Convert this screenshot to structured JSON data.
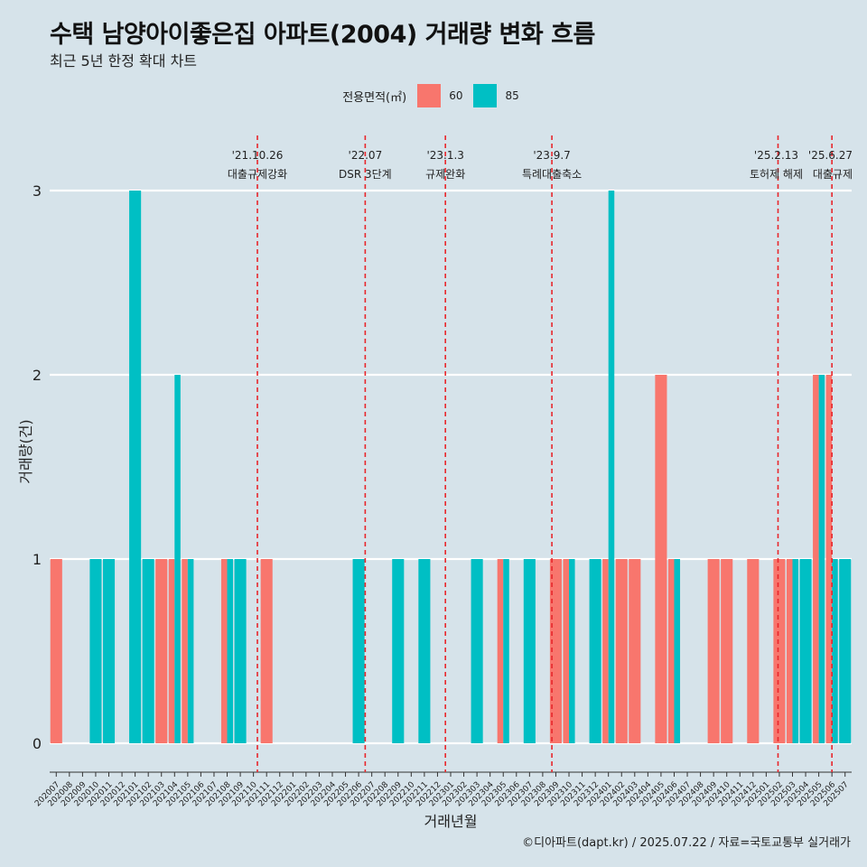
{
  "title": "수택 남양아이좋은집 아파트(2004) 거래량 변화 흐름",
  "subtitle": "최근 5년 한정 확대 차트",
  "caption": "©디아파트(dapt.kr) / 2025.07.22 / 자료=국토교통부 실거래가",
  "legend": {
    "title": "전용면적(㎡)",
    "items": [
      {
        "label": "60",
        "color": "#f8766d"
      },
      {
        "label": "85",
        "color": "#00bfc4"
      }
    ]
  },
  "chart_data": {
    "type": "bar",
    "xlabel": "거래년월",
    "ylabel": "거래량(건)",
    "ylim": [
      0,
      3
    ],
    "yticks": [
      0,
      1,
      2,
      3
    ],
    "grid": true,
    "legend_position": "top",
    "categories": [
      "202007",
      "202008",
      "202009",
      "202010",
      "202011",
      "202012",
      "202101",
      "202102",
      "202103",
      "202104",
      "202105",
      "202106",
      "202107",
      "202108",
      "202109",
      "202110",
      "202111",
      "202112",
      "202201",
      "202202",
      "202203",
      "202204",
      "202205",
      "202206",
      "202207",
      "202208",
      "202209",
      "202210",
      "202211",
      "202212",
      "202301",
      "202302",
      "202303",
      "202304",
      "202305",
      "202306",
      "202307",
      "202308",
      "202309",
      "202310",
      "202311",
      "202312",
      "202401",
      "202402",
      "202403",
      "202404",
      "202405",
      "202406",
      "202407",
      "202408",
      "202409",
      "202410",
      "202411",
      "202412",
      "202501",
      "202502",
      "202503",
      "202504",
      "202505",
      "202506",
      "202507"
    ],
    "series": [
      {
        "name": "60",
        "color": "#f8766d",
        "values": [
          1,
          0,
          0,
          0,
          0,
          0,
          0,
          0,
          1,
          1,
          1,
          0,
          0,
          1,
          0,
          0,
          1,
          0,
          0,
          0,
          0,
          0,
          0,
          0,
          0,
          0,
          0,
          0,
          0,
          0,
          0,
          0,
          0,
          0,
          1,
          0,
          0,
          0,
          1,
          1,
          0,
          0,
          1,
          1,
          1,
          0,
          2,
          1,
          0,
          0,
          1,
          1,
          0,
          1,
          0,
          1,
          1,
          0,
          2,
          2,
          0
        ]
      },
      {
        "name": "85",
        "color": "#00bfc4",
        "values": [
          0,
          0,
          0,
          1,
          1,
          0,
          3,
          1,
          0,
          2,
          1,
          0,
          0,
          1,
          1,
          0,
          0,
          0,
          0,
          0,
          0,
          0,
          0,
          1,
          0,
          0,
          1,
          0,
          1,
          0,
          0,
          0,
          1,
          0,
          1,
          0,
          1,
          0,
          0,
          1,
          0,
          1,
          3,
          0,
          0,
          0,
          0,
          1,
          0,
          0,
          0,
          0,
          0,
          0,
          0,
          0,
          1,
          1,
          2,
          1,
          1
        ]
      }
    ],
    "events": [
      {
        "date": "'21.10.26",
        "label": "대출규제강화",
        "index": 15.8
      },
      {
        "date": "'22.07",
        "label": "DSR 3단계",
        "index": 24
      },
      {
        "date": "'23.1.3",
        "label": "규제완화",
        "index": 30.1
      },
      {
        "date": "'23.9.7",
        "label": "특례대출축소",
        "index": 38.2
      },
      {
        "date": "'25.2.13",
        "label": "토허제 해제",
        "index": 55.4
      },
      {
        "date": "'25.6.27",
        "label": "대출규제",
        "index": 59.5
      }
    ]
  }
}
